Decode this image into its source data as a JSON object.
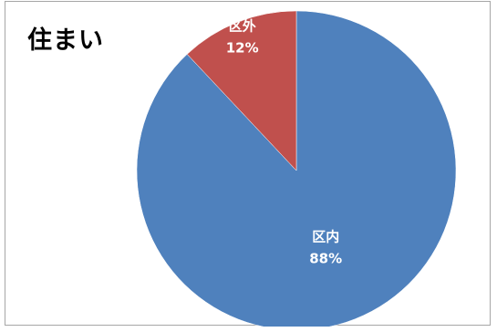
{
  "chart_data": {
    "type": "pie",
    "title": "住まい",
    "start_angle_deg": 0,
    "direction": "clockwise",
    "slices": [
      {
        "label": "区内",
        "value": 88,
        "pct_label": "88%",
        "color": "#4f81bd"
      },
      {
        "label": "区外",
        "value": 12,
        "pct_label": "12%",
        "color": "#c0504d"
      }
    ],
    "legend": "none"
  }
}
